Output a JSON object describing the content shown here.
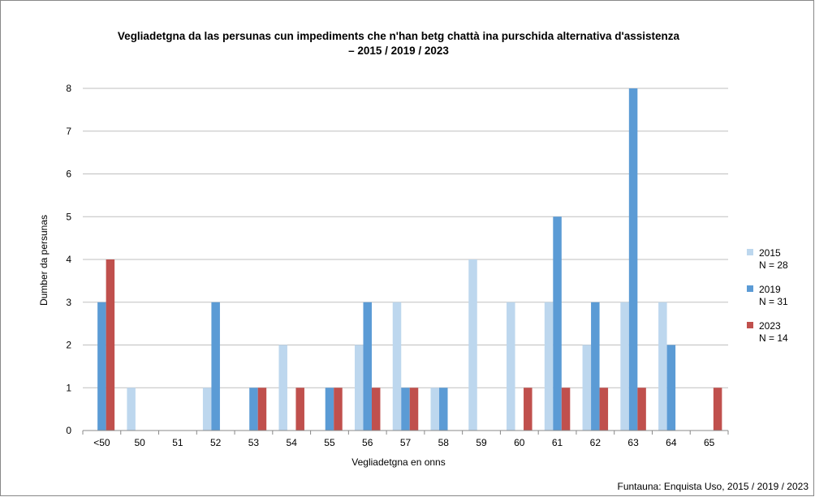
{
  "chart_data": {
    "type": "bar",
    "title": "Vegliadetgna da las persunas cun impediments che n'han betg chattà ina purschida alternativa d'assistenza",
    "subtitle": "– 2015 / 2019 / 2023",
    "xlabel": "Vegliadetgna en onns",
    "ylabel": "Dumber da persunas",
    "ylim": [
      0,
      8
    ],
    "yticks": [
      "0",
      "1",
      "2",
      "3",
      "4",
      "5",
      "6",
      "7",
      "8"
    ],
    "grid": true,
    "legend_position": "right",
    "categories": [
      "<50",
      "50",
      "51",
      "52",
      "53",
      "54",
      "55",
      "56",
      "57",
      "58",
      "59",
      "60",
      "61",
      "62",
      "63",
      "64",
      "65"
    ],
    "series": [
      {
        "name": "2015",
        "note": "N = 28",
        "color": "#bdd7ee",
        "values": [
          0,
          1,
          0,
          1,
          0,
          2,
          0,
          2,
          3,
          1,
          4,
          3,
          3,
          2,
          3,
          3,
          0
        ]
      },
      {
        "name": "2019",
        "note": "N = 31",
        "color": "#5b9bd5",
        "values": [
          3,
          0,
          0,
          3,
          1,
          0,
          1,
          3,
          1,
          1,
          0,
          0,
          5,
          3,
          8,
          2,
          0
        ]
      },
      {
        "name": "2023",
        "note": "N = 14",
        "color": "#c0504d",
        "values": [
          4,
          0,
          0,
          0,
          1,
          1,
          1,
          1,
          1,
          0,
          0,
          1,
          1,
          1,
          1,
          0,
          1
        ]
      }
    ]
  },
  "source": "Funtauna: Enquista Uso, 2015 / 2019 / 2023"
}
